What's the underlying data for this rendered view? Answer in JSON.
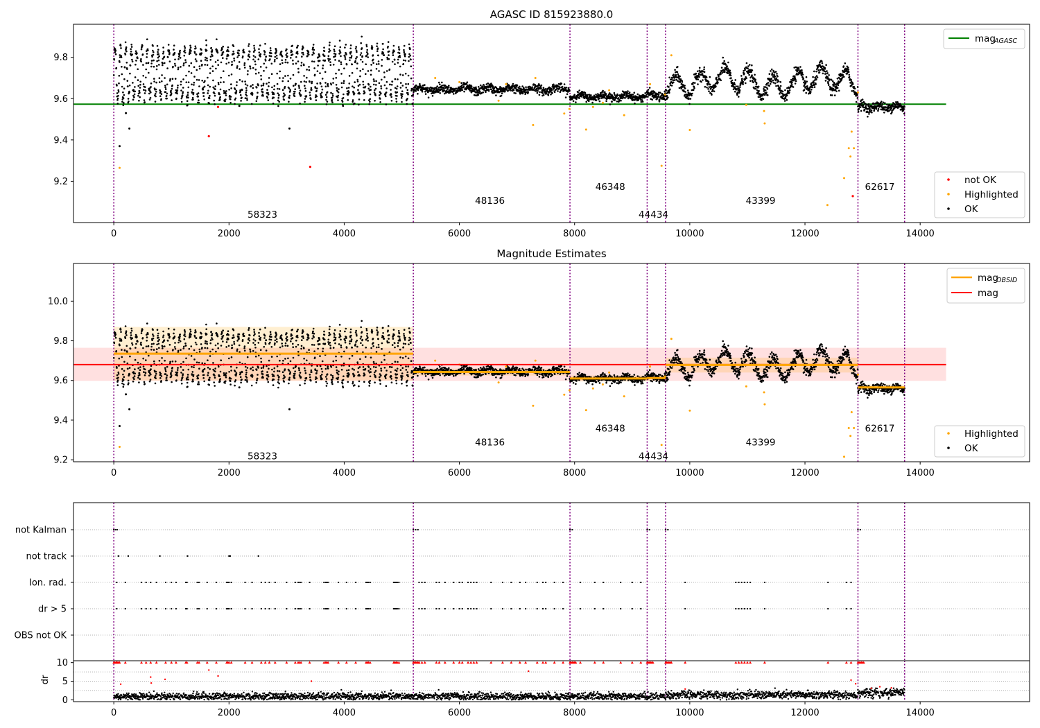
{
  "chart_data": [
    {
      "type": "scatter",
      "title": "AGASC ID 815923880.0",
      "xlabel": "",
      "ylabel": "",
      "xlim": [
        -700,
        15900
      ],
      "ylim": [
        9.0,
        9.96
      ],
      "x_ticks": [
        0,
        2000,
        4000,
        6000,
        8000,
        10000,
        12000,
        14000
      ],
      "y_ticks": [
        9.2,
        9.4,
        9.6,
        9.8
      ],
      "obs_boundaries": [
        0,
        5200,
        7920,
        9260,
        9580,
        12920,
        13730
      ],
      "obs_labels": [
        {
          "text": "58323",
          "x": 2580,
          "y": 9.04
        },
        {
          "text": "48136",
          "x": 6530,
          "y": 9.107
        },
        {
          "text": "46348",
          "x": 8620,
          "y": 9.175
        },
        {
          "text": "44434",
          "x": 9370,
          "y": 9.04
        },
        {
          "text": "43399",
          "x": 11230,
          "y": 9.107
        },
        {
          "text": "62617",
          "x": 13300,
          "y": 9.175
        }
      ],
      "hlines": [
        {
          "name": "mag_AGASC",
          "y": 9.573,
          "x_range": [
            -700,
            14450
          ],
          "color": "#008000"
        }
      ],
      "segments": [
        {
          "x0": 0,
          "x1": 5200,
          "center": 9.72,
          "amp": 0.115,
          "period": 93,
          "noise": 0.035
        },
        {
          "x0": 5200,
          "x1": 7920,
          "center": 9.645,
          "amp": 0.01,
          "period": 400,
          "noise": 0.018
        },
        {
          "x0": 7920,
          "x1": 9260,
          "center": 9.61,
          "amp": 0.008,
          "period": 400,
          "noise": 0.016
        },
        {
          "x0": 9260,
          "x1": 9580,
          "center": 9.615,
          "amp": 0.008,
          "period": 400,
          "noise": 0.018
        },
        {
          "x0": 9580,
          "x1": 12920,
          "center": 9.68,
          "amp": 0.05,
          "period": 420,
          "noise": 0.03
        },
        {
          "x0": 12920,
          "x1": 13730,
          "center": 9.56,
          "amp": 0.01,
          "period": 300,
          "noise": 0.02
        }
      ],
      "outliers_ok": [
        [
          100,
          9.37
        ],
        [
          210,
          9.53
        ],
        [
          270,
          9.455
        ],
        [
          3050,
          9.455
        ],
        [
          2180,
          9.565
        ]
      ],
      "not_ok": [
        [
          1810,
          9.56
        ],
        [
          1650,
          9.418
        ],
        [
          3410,
          9.27
        ],
        [
          12830,
          9.128
        ]
      ],
      "highlighted": [
        [
          100,
          9.265
        ],
        [
          5580,
          9.7
        ],
        [
          6000,
          9.68
        ],
        [
          6680,
          9.59
        ],
        [
          6810,
          9.67
        ],
        [
          7280,
          9.472
        ],
        [
          7320,
          9.7
        ],
        [
          7820,
          9.528
        ],
        [
          7910,
          9.55
        ],
        [
          8200,
          9.45
        ],
        [
          8320,
          9.56
        ],
        [
          8490,
          9.58
        ],
        [
          8600,
          9.64
        ],
        [
          8860,
          9.52
        ],
        [
          9310,
          9.67
        ],
        [
          9510,
          9.275
        ],
        [
          9570,
          9.62
        ],
        [
          9680,
          9.81
        ],
        [
          10000,
          9.448
        ],
        [
          10980,
          9.57
        ],
        [
          11290,
          9.54
        ],
        [
          11300,
          9.48
        ],
        [
          12390,
          9.085
        ],
        [
          12680,
          9.215
        ],
        [
          12760,
          9.36
        ],
        [
          12790,
          9.32
        ],
        [
          12810,
          9.44
        ],
        [
          12850,
          9.36
        ],
        [
          12920,
          9.63
        ]
      ],
      "legend_lines": [
        {
          "name": "mag",
          "sub": "AGASC",
          "color": "#008000"
        }
      ],
      "legend_markers": [
        {
          "name": "not OK",
          "color": "#ff0000"
        },
        {
          "name": "Highlighted",
          "color": "#ffa500"
        },
        {
          "name": "OK",
          "color": "#000000"
        }
      ]
    },
    {
      "type": "scatter",
      "title": "Magnitude Estimates",
      "xlabel": "",
      "ylabel": "",
      "xlim": [
        -700,
        15900
      ],
      "ylim": [
        9.19,
        10.19
      ],
      "x_ticks": [
        0,
        2000,
        4000,
        6000,
        8000,
        10000,
        12000,
        14000
      ],
      "y_ticks": [
        9.2,
        9.4,
        9.6,
        9.8,
        10.0
      ],
      "obs_labels": [
        {
          "text": "58323",
          "x": 2580,
          "y": 9.22
        },
        {
          "text": "48136",
          "x": 6530,
          "y": 9.29
        },
        {
          "text": "46348",
          "x": 8620,
          "y": 9.36
        },
        {
          "text": "44434",
          "x": 9370,
          "y": 9.22
        },
        {
          "text": "43399",
          "x": 11230,
          "y": 9.29
        },
        {
          "text": "62617",
          "x": 13300,
          "y": 9.36
        }
      ],
      "mag": {
        "name": "mag",
        "y": 9.68,
        "band": [
          9.598,
          9.765
        ],
        "x_range": [
          -700,
          14450
        ],
        "color": "#ff0000"
      },
      "mag_obsid": [
        {
          "x0": 0,
          "x1": 5200,
          "y": 9.735,
          "band": [
            9.6,
            9.87
          ]
        },
        {
          "x0": 5200,
          "x1": 7920,
          "y": 9.643,
          "band": [
            9.625,
            9.66
          ]
        },
        {
          "x0": 7920,
          "x1": 9260,
          "y": 9.61,
          "band": [
            9.595,
            9.625
          ]
        },
        {
          "x0": 9260,
          "x1": 9580,
          "y": 9.612,
          "band": [
            9.597,
            9.627
          ]
        },
        {
          "x0": 9580,
          "x1": 12920,
          "y": 9.678,
          "band": [
            9.64,
            9.715
          ]
        },
        {
          "x0": 12920,
          "x1": 13730,
          "y": 9.565,
          "band": [
            9.55,
            9.58
          ]
        }
      ],
      "legend_lines": [
        {
          "name": "mag",
          "sub": "OBSID",
          "color": "#ffa500"
        },
        {
          "name": "mag",
          "sub": "",
          "color": "#ff0000"
        }
      ],
      "legend_markers": [
        {
          "name": "Highlighted",
          "color": "#ffa500"
        },
        {
          "name": "OK",
          "color": "#000000"
        }
      ]
    },
    {
      "type": "scatter",
      "title": "",
      "xlabel": "",
      "ylabel": "",
      "xlim": [
        -700,
        15900
      ],
      "categories": [
        "not Kalman",
        "not track",
        "Ion. rad.",
        "dr > 5",
        "OBS not OK"
      ],
      "flags": {
        "not Kalman": [
          0,
          30,
          60,
          5200,
          5240,
          5280,
          7920,
          7960,
          9260,
          9300,
          9580,
          9620,
          12920,
          12960
        ],
        "not track": [
          80,
          250,
          800,
          1280,
          2000,
          2020,
          2510
        ],
        "Ion. rad.": [
          50,
          200,
          480,
          560,
          640,
          740,
          900,
          1000,
          1080,
          1250,
          1270,
          1450,
          1480,
          1620,
          1780,
          1960,
          1980,
          2000,
          2040,
          2280,
          2400,
          2560,
          2630,
          2700,
          2800,
          3000,
          3150,
          3200,
          3220,
          3250,
          3400,
          3650,
          3680,
          3700,
          3720,
          3900,
          4040,
          4200,
          4380,
          4400,
          4420,
          4450,
          4860,
          4880,
          4900,
          4920,
          4950,
          5300,
          5350,
          5400,
          5600,
          5650,
          5750,
          5900,
          6000,
          6050,
          6150,
          6200,
          6250,
          6300,
          6550,
          6750,
          6900,
          7050,
          7150,
          7350,
          7450,
          7500,
          7650,
          7800,
          8100,
          8350,
          8500,
          8800,
          9000,
          9150,
          9920,
          10800,
          10850,
          10900,
          10950,
          11000,
          11050,
          11300,
          12400,
          12720,
          12800
        ],
        "dr > 5": [
          50,
          200,
          480,
          560,
          640,
          740,
          900,
          1000,
          1080,
          1250,
          1270,
          1450,
          1480,
          1620,
          1780,
          1960,
          1980,
          2000,
          2040,
          2280,
          2400,
          2560,
          2630,
          2700,
          2800,
          3000,
          3150,
          3200,
          3220,
          3250,
          3400,
          3650,
          3680,
          3700,
          3720,
          3900,
          4040,
          4200,
          4380,
          4400,
          4420,
          4450,
          4860,
          4880,
          4900,
          4920,
          4950,
          5300,
          5350,
          5400,
          5600,
          5650,
          5750,
          5900,
          6000,
          6050,
          6150,
          6200,
          6250,
          6300,
          6550,
          6750,
          6900,
          7050,
          7150,
          7350,
          7450,
          7500,
          7650,
          7800,
          8100,
          8350,
          8500,
          8800,
          9000,
          9150,
          9920,
          10800,
          10850,
          10900,
          10950,
          11000,
          11050,
          11300,
          12400,
          12720,
          12800
        ],
        "OBS not OK": []
      }
    },
    {
      "type": "scatter",
      "title": "",
      "xlabel": "",
      "ylabel": "dr",
      "xlim": [
        -700,
        15900
      ],
      "ylim": [
        -0.5,
        10.5
      ],
      "y_ticks": [
        0,
        5,
        10
      ],
      "x_ticks": [
        0,
        2000,
        4000,
        6000,
        8000,
        10000,
        12000,
        14000
      ],
      "clip": 10,
      "spread": [
        {
          "x0": 0,
          "x1": 9580,
          "mean": 0.9,
          "sd": 0.5
        },
        {
          "x0": 9580,
          "x1": 12920,
          "mean": 1.3,
          "sd": 0.55
        },
        {
          "x0": 12920,
          "x1": 13730,
          "mean": 1.9,
          "sd": 0.6
        }
      ],
      "outliers": [
        [
          120,
          4.2
        ],
        [
          650,
          4.5
        ],
        [
          640,
          6.1
        ],
        [
          890,
          5.5
        ],
        [
          1650,
          8.0
        ],
        [
          1810,
          6.4
        ],
        [
          3430,
          5.0
        ],
        [
          7200,
          7.7
        ],
        [
          9920,
          2.9
        ],
        [
          12800,
          5.3
        ],
        [
          12880,
          4.3
        ],
        [
          13150,
          3.1
        ],
        [
          13300,
          3.5
        ],
        [
          13500,
          3.2
        ]
      ]
    }
  ]
}
